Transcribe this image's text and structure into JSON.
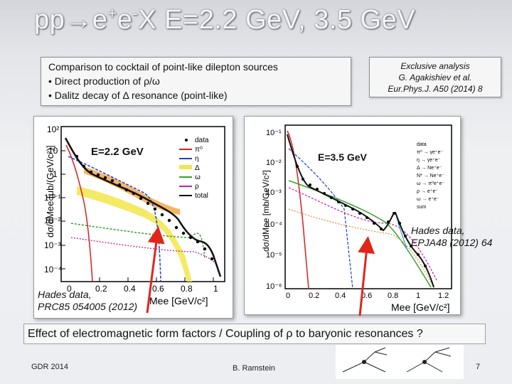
{
  "slide": {
    "title_pre": "pp",
    "title_arrow": "→",
    "title_e": "e",
    "title_plus": "+",
    "title_e2": "e",
    "title_minus": "-",
    "title_post": "X  E=2.2 GeV, 3.5 GeV"
  },
  "cocktail_box": {
    "heading": "Comparison to cocktail of point-like dilepton sources",
    "bullet1": "•  Direct production of ρ/ω",
    "bullet2": "•  Dalitz decay of Δ resonance (point-like)"
  },
  "exclusive_box": {
    "line1": "Exclusive analysis",
    "line2": "G. Agakishiev et al.",
    "line3": "Eur.Phys.J. A50 (2014) 8"
  },
  "left_plot": {
    "energy_label": "E=2.2 GeV",
    "ylabel": "dσ/dMee [μb/(GeV/c²)]",
    "xlabel": "Mee [GeV/c²]",
    "yticks": [
      "10²",
      "10",
      "1",
      "10⁻¹",
      "10⁻²",
      "10⁻³",
      "10⁻⁴"
    ],
    "xticks": [
      "0",
      "0.2",
      "0.4",
      "0.6",
      "0.8",
      "1"
    ],
    "legend": [
      "data",
      "π⁰",
      "η",
      "Δ",
      "ω",
      "ρ",
      "total"
    ]
  },
  "right_plot": {
    "energy_label": "E=3.5 GeV",
    "ylabel": "dσ/dMee [mb/GeV/c²]",
    "xlabel": "Mee [GeV/c²]",
    "yticks": [
      "10⁻¹",
      "10⁻²",
      "10⁻³",
      "10⁻⁴",
      "10⁻⁵",
      "10⁻⁶"
    ],
    "xticks": [
      "0",
      "0.2",
      "0.4",
      "0.6",
      "0.8",
      "1",
      "1.2"
    ],
    "legend": [
      "data",
      "π⁰ → γe⁺e⁻",
      "η → γe⁺e⁻",
      "Δ → Ne⁺e⁻",
      "N* → Ne⁺e⁻",
      "ω → π⁰e⁺e⁻",
      "ρ → e⁺e⁻",
      "ω → e⁺e⁻",
      "sum"
    ]
  },
  "hades_left": {
    "line1": "Hades data,",
    "line2": "PRC85 054005 (2012)"
  },
  "hades_right": {
    "line1": "Hades data,",
    "line2": "EPJA48 (2012) 64"
  },
  "bottom_text": "Effect of electromagnetic form factors /  Coupling of ρ to baryonic resonances ?",
  "footer": {
    "left": "GDR 2014",
    "middle": "B. Ramstein",
    "page": "7"
  },
  "colors": {
    "accent_red": "#e0261b",
    "title_text": "#f4f5f7",
    "total_curve": "#111111"
  }
}
